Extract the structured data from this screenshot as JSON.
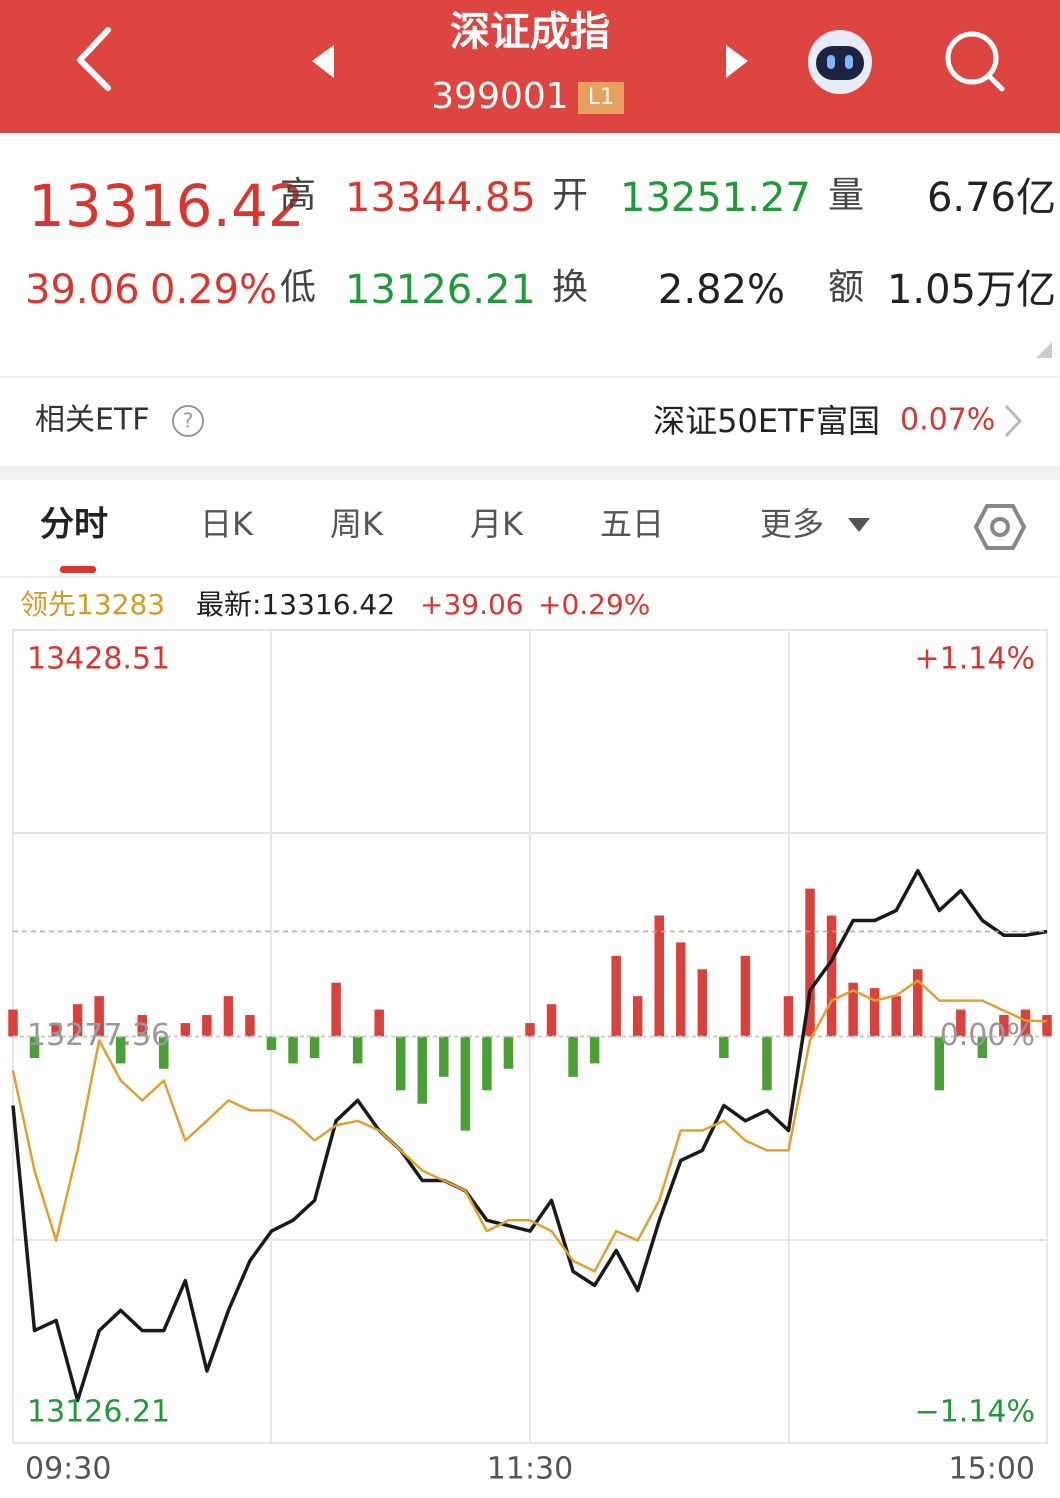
{
  "header": {
    "title": "深证成指",
    "code": "399001",
    "badge": "L1"
  },
  "quote": {
    "price": "13316.42",
    "change": "39.06",
    "change_pct": "0.29%",
    "stats": [
      {
        "label": "高",
        "value": "13344.85"
      },
      {
        "label": "开",
        "value": "13251.27"
      },
      {
        "label": "量",
        "value": "6.76亿"
      },
      {
        "label": "低",
        "value": "13126.21"
      },
      {
        "label": "换",
        "value": "2.82%"
      },
      {
        "label": "额",
        "value": "1.05万亿"
      }
    ]
  },
  "etf": {
    "label": "相关ETF",
    "name": "深证50ETF富国",
    "change": "0.07%"
  },
  "tabs": [
    "分时",
    "日K",
    "周K",
    "月K",
    "五日",
    "更多"
  ],
  "chart_data": {
    "type": "line",
    "legend": [
      "领先13283",
      "最新:13316.42",
      "+39.06",
      "+0.29%"
    ],
    "x": [
      0,
      5,
      10,
      15,
      20,
      25,
      30,
      35,
      40,
      45,
      50,
      55,
      60,
      65,
      70,
      75,
      80,
      85,
      90,
      95,
      100,
      105,
      110,
      115,
      120,
      125,
      130,
      135,
      140,
      145,
      150,
      155,
      160,
      165,
      170,
      175,
      180,
      185,
      190,
      195,
      200,
      205,
      210,
      215,
      220,
      225,
      230,
      235,
      240
    ],
    "xlim": [
      0,
      240
    ],
    "xticks": [
      {
        "value": 0,
        "label": "09:30"
      },
      {
        "value": 120,
        "label": "11:30"
      },
      {
        "value": 240,
        "label": "15:00"
      }
    ],
    "ylim": [
      13126.21,
      13428.51
    ],
    "yticks": [
      13428.51,
      13277.36,
      13126.21
    ],
    "y2lim": [
      -1.14,
      1.14
    ],
    "y2ticks": [
      {
        "value": 1.14,
        "label": "+1.14%"
      },
      {
        "value": 0,
        "label": "0.00%"
      },
      {
        "value": -1.14,
        "label": "−1.14%"
      }
    ],
    "series": [
      {
        "color": "#1a1a1a",
        "values": [
          13251.7,
          13168,
          13171.8,
          13142,
          13168,
          13175.5,
          13168,
          13168,
          13186.6,
          13153,
          13175.5,
          13194,
          13205,
          13209,
          13216.4,
          13246,
          13253.6,
          13242.4,
          13235,
          13223.8,
          13223.8,
          13220,
          13209,
          13207,
          13205,
          13216.4,
          13190,
          13184.8,
          13197.8,
          13182.9,
          13209,
          13231.3,
          13235,
          13251.7,
          13246,
          13249.9,
          13242.4,
          13294.5,
          13305.6,
          13320.5,
          13320.5,
          13324.2,
          13339,
          13324.2,
          13331.6,
          13320.5,
          13315,
          13315,
          13316.42
        ]
      },
      {
        "color": "#e0a030",
        "values": [
          13264.7,
          13227.5,
          13201.5,
          13235,
          13275.9,
          13261,
          13253.6,
          13261,
          13238.7,
          13246,
          13253.6,
          13249.9,
          13249.9,
          13246,
          13238.7,
          13244.3,
          13246,
          13242.4,
          13235,
          13227.5,
          13223.8,
          13220,
          13205,
          13209,
          13209,
          13205,
          13194,
          13190,
          13205,
          13201.5,
          13216.4,
          13242.4,
          13242.4,
          13246,
          13238.7,
          13235,
          13235,
          13275.9,
          13290.7,
          13294.5,
          13290.7,
          13292.6,
          13298.2,
          13290.7,
          13290.7,
          13290.7,
          13287,
          13283.3,
          13283
        ]
      }
    ],
    "bars": {
      "up_color": "#d9423c",
      "down_color": "#4c9e36",
      "values": [
        10,
        -8,
        5,
        12,
        15,
        -10,
        8,
        -12,
        5,
        8,
        15,
        8,
        -5,
        -10,
        -8,
        20,
        -10,
        10,
        -20,
        -25,
        -15,
        -35,
        -20,
        -12,
        5,
        12,
        -15,
        -10,
        30,
        15,
        45,
        35,
        25,
        -8,
        30,
        -20,
        15,
        55,
        45,
        20,
        18,
        15,
        25,
        -20,
        10,
        -8,
        8,
        10,
        8
      ]
    }
  }
}
